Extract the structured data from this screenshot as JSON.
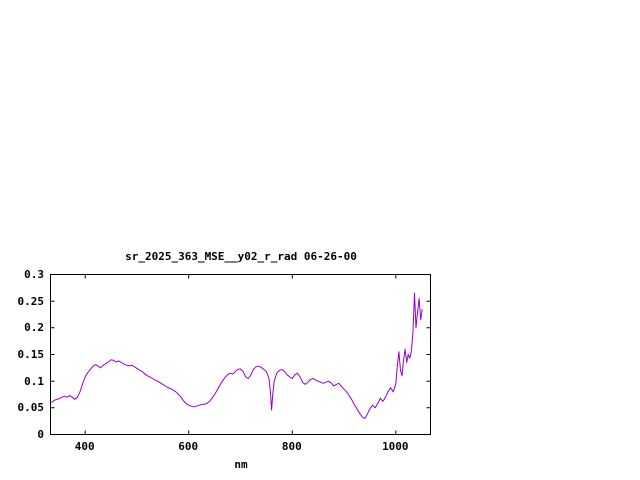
{
  "page": {
    "background": "#ffffff",
    "text_color": "#000000"
  },
  "chart_data": {
    "type": "line",
    "title": "sr_2025_363_MSE__y02_r_rad 06-26-00",
    "xlabel": "nm",
    "ylabel": "",
    "xlim": [
      333,
      1067
    ],
    "ylim": [
      0,
      0.3
    ],
    "xticks": [
      400,
      600,
      800,
      1000
    ],
    "xtick_labels": [
      "400",
      "600",
      "800",
      "1000"
    ],
    "yticks": [
      0,
      0.05,
      0.1,
      0.15,
      0.2,
      0.25,
      0.3
    ],
    "ytick_labels": [
      "0",
      "0.05",
      "0.1",
      "0.15",
      "0.2",
      "0.25",
      "0.3"
    ],
    "grid": false,
    "legend": "none",
    "line_color": "#9400d3",
    "border_color": "#000000",
    "series": [
      {
        "name": "sr_2025_363_MSE__y02_r_rad",
        "points": [
          [
            335,
            0.06
          ],
          [
            340,
            0.064
          ],
          [
            345,
            0.066
          ],
          [
            350,
            0.067
          ],
          [
            355,
            0.07
          ],
          [
            360,
            0.072
          ],
          [
            365,
            0.07
          ],
          [
            370,
            0.073
          ],
          [
            375,
            0.07
          ],
          [
            380,
            0.066
          ],
          [
            385,
            0.07
          ],
          [
            390,
            0.08
          ],
          [
            395,
            0.095
          ],
          [
            400,
            0.108
          ],
          [
            405,
            0.116
          ],
          [
            410,
            0.122
          ],
          [
            415,
            0.128
          ],
          [
            420,
            0.131
          ],
          [
            425,
            0.128
          ],
          [
            430,
            0.125
          ],
          [
            435,
            0.13
          ],
          [
            440,
            0.133
          ],
          [
            445,
            0.136
          ],
          [
            450,
            0.14
          ],
          [
            455,
            0.139
          ],
          [
            460,
            0.136
          ],
          [
            465,
            0.138
          ],
          [
            470,
            0.135
          ],
          [
            475,
            0.132
          ],
          [
            480,
            0.13
          ],
          [
            485,
            0.129
          ],
          [
            490,
            0.13
          ],
          [
            495,
            0.127
          ],
          [
            500,
            0.124
          ],
          [
            505,
            0.121
          ],
          [
            510,
            0.118
          ],
          [
            515,
            0.114
          ],
          [
            520,
            0.11
          ],
          [
            525,
            0.108
          ],
          [
            530,
            0.105
          ],
          [
            535,
            0.102
          ],
          [
            540,
            0.1
          ],
          [
            545,
            0.097
          ],
          [
            550,
            0.094
          ],
          [
            555,
            0.091
          ],
          [
            560,
            0.088
          ],
          [
            565,
            0.086
          ],
          [
            570,
            0.083
          ],
          [
            575,
            0.08
          ],
          [
            580,
            0.075
          ],
          [
            585,
            0.07
          ],
          [
            590,
            0.063
          ],
          [
            595,
            0.058
          ],
          [
            600,
            0.055
          ],
          [
            605,
            0.053
          ],
          [
            610,
            0.052
          ],
          [
            615,
            0.053
          ],
          [
            620,
            0.055
          ],
          [
            625,
            0.056
          ],
          [
            630,
            0.057
          ],
          [
            635,
            0.058
          ],
          [
            640,
            0.062
          ],
          [
            645,
            0.068
          ],
          [
            650,
            0.075
          ],
          [
            655,
            0.083
          ],
          [
            660,
            0.092
          ],
          [
            665,
            0.1
          ],
          [
            670,
            0.107
          ],
          [
            675,
            0.112
          ],
          [
            680,
            0.115
          ],
          [
            685,
            0.113
          ],
          [
            690,
            0.118
          ],
          [
            695,
            0.122
          ],
          [
            700,
            0.123
          ],
          [
            705,
            0.118
          ],
          [
            710,
            0.108
          ],
          [
            715,
            0.105
          ],
          [
            720,
            0.112
          ],
          [
            725,
            0.122
          ],
          [
            730,
            0.127
          ],
          [
            735,
            0.128
          ],
          [
            740,
            0.126
          ],
          [
            745,
            0.122
          ],
          [
            750,
            0.118
          ],
          [
            755,
            0.105
          ],
          [
            758,
            0.078
          ],
          [
            760,
            0.046
          ],
          [
            762,
            0.072
          ],
          [
            765,
            0.1
          ],
          [
            770,
            0.115
          ],
          [
            775,
            0.12
          ],
          [
            780,
            0.122
          ],
          [
            785,
            0.118
          ],
          [
            790,
            0.112
          ],
          [
            795,
            0.108
          ],
          [
            800,
            0.105
          ],
          [
            805,
            0.112
          ],
          [
            810,
            0.115
          ],
          [
            815,
            0.108
          ],
          [
            820,
            0.098
          ],
          [
            825,
            0.094
          ],
          [
            830,
            0.098
          ],
          [
            835,
            0.103
          ],
          [
            840,
            0.105
          ],
          [
            845,
            0.102
          ],
          [
            850,
            0.1
          ],
          [
            855,
            0.098
          ],
          [
            860,
            0.096
          ],
          [
            865,
            0.098
          ],
          [
            870,
            0.1
          ],
          [
            875,
            0.097
          ],
          [
            880,
            0.091
          ],
          [
            885,
            0.094
          ],
          [
            890,
            0.096
          ],
          [
            895,
            0.09
          ],
          [
            900,
            0.085
          ],
          [
            905,
            0.08
          ],
          [
            910,
            0.073
          ],
          [
            915,
            0.065
          ],
          [
            920,
            0.056
          ],
          [
            925,
            0.048
          ],
          [
            930,
            0.04
          ],
          [
            935,
            0.033
          ],
          [
            940,
            0.03
          ],
          [
            945,
            0.038
          ],
          [
            950,
            0.048
          ],
          [
            955,
            0.055
          ],
          [
            960,
            0.05
          ],
          [
            965,
            0.058
          ],
          [
            970,
            0.068
          ],
          [
            975,
            0.062
          ],
          [
            980,
            0.07
          ],
          [
            985,
            0.08
          ],
          [
            990,
            0.088
          ],
          [
            995,
            0.08
          ],
          [
            1000,
            0.095
          ],
          [
            1003,
            0.13
          ],
          [
            1006,
            0.155
          ],
          [
            1009,
            0.12
          ],
          [
            1012,
            0.11
          ],
          [
            1015,
            0.14
          ],
          [
            1018,
            0.16
          ],
          [
            1021,
            0.135
          ],
          [
            1024,
            0.15
          ],
          [
            1027,
            0.143
          ],
          [
            1030,
            0.155
          ],
          [
            1033,
            0.19
          ],
          [
            1036,
            0.265
          ],
          [
            1039,
            0.2
          ],
          [
            1042,
            0.23
          ],
          [
            1045,
            0.255
          ],
          [
            1048,
            0.215
          ],
          [
            1051,
            0.235
          ]
        ]
      }
    ]
  }
}
